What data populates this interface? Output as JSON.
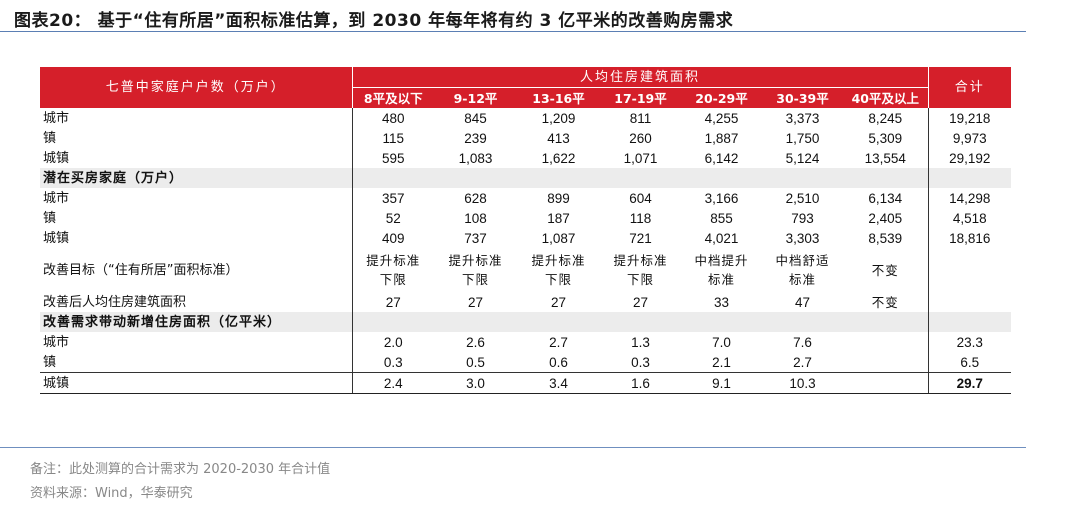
{
  "title": "图表20： 基于“住有所居”面积标准估算，到 2030 年每年将有约 3 亿平米的改善购房需求",
  "header": {
    "left": "七普中家庭户户数（万户）",
    "group": "人均住房建筑面积",
    "total": "合计",
    "columns": [
      "8平及以下",
      "9-12平",
      "13-16平",
      "17-19平",
      "20-29平",
      "30-39平",
      "40平及以上"
    ]
  },
  "rows": [
    {
      "label": "城市",
      "cells": [
        "480",
        "845",
        "1,209",
        "811",
        "4,255",
        "3,373",
        "8,245"
      ],
      "total": "19,218"
    },
    {
      "label": "镇",
      "cells": [
        "115",
        "239",
        "413",
        "260",
        "1,887",
        "1,750",
        "5,309"
      ],
      "total": "9,973"
    },
    {
      "label": "城镇",
      "cells": [
        "595",
        "1,083",
        "1,622",
        "1,071",
        "6,142",
        "5,124",
        "13,554"
      ],
      "total": "29,192"
    },
    {
      "label": "潜在买房家庭（万户）",
      "section": true,
      "cells": [
        "",
        "",
        "",
        "",
        "",
        "",
        ""
      ],
      "total": ""
    },
    {
      "label": "城市",
      "cells": [
        "357",
        "628",
        "899",
        "604",
        "3,166",
        "2,510",
        "6,134"
      ],
      "total": "14,298"
    },
    {
      "label": "镇",
      "cells": [
        "52",
        "108",
        "187",
        "118",
        "855",
        "793",
        "2,405"
      ],
      "total": "4,518"
    },
    {
      "label": "城镇",
      "cells": [
        "409",
        "737",
        "1,087",
        "721",
        "4,021",
        "3,303",
        "8,539"
      ],
      "total": "18,816"
    },
    {
      "label": "改善目标（“住有所居”面积标准）",
      "cells": [
        "提升标准下限",
        "提升标准下限",
        "提升标准下限",
        "提升标准下限",
        "中档提升标准",
        "中档舒适标准",
        "不变"
      ],
      "total": ""
    },
    {
      "label": "改善后人均住房建筑面积",
      "cells": [
        "27",
        "27",
        "27",
        "27",
        "33",
        "47",
        "不变"
      ],
      "total": ""
    },
    {
      "label": "改善需求带动新增住房面积（亿平米）",
      "section": true,
      "cells": [
        "",
        "",
        "",
        "",
        "",
        "",
        ""
      ],
      "total": ""
    },
    {
      "label": "城市",
      "cells": [
        "2.0",
        "2.6",
        "2.7",
        "1.3",
        "7.0",
        "7.6",
        ""
      ],
      "total": "23.3"
    },
    {
      "label": "镇",
      "cells": [
        "0.3",
        "0.5",
        "0.6",
        "0.3",
        "2.1",
        "2.7",
        ""
      ],
      "total": "6.5"
    },
    {
      "label": "城镇",
      "cells": [
        "2.4",
        "3.0",
        "3.4",
        "1.6",
        "9.1",
        "10.3",
        ""
      ],
      "total": "29.7"
    }
  ],
  "notes": {
    "note1": "备注：此处测算的合计需求为 2020-2030 年合计值",
    "note2": "资料来源：Wind，华泰研究"
  }
}
